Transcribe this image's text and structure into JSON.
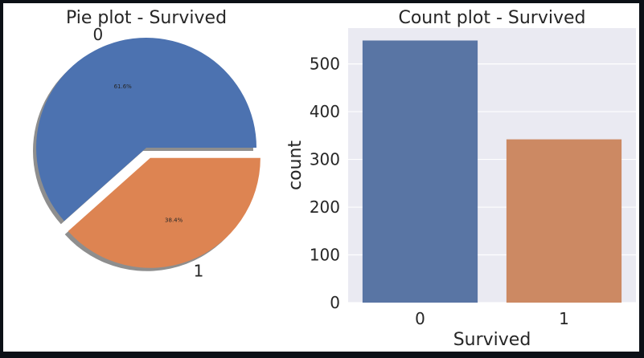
{
  "chart_data": [
    {
      "type": "pie",
      "title": "Pie plot - Survived",
      "labels": [
        "0",
        "1"
      ],
      "values": [
        61.6,
        38.4
      ],
      "autopct": [
        "61.6%",
        "38.4%"
      ],
      "explode": [
        0,
        0.1
      ],
      "shadow": true,
      "colors": [
        "#4c72b0",
        "#dd8452"
      ]
    },
    {
      "type": "bar",
      "title": "Count plot - Survived",
      "categories": [
        "0",
        "1"
      ],
      "values": [
        549,
        342
      ],
      "xlabel": "Survived",
      "ylabel": "count",
      "ylim": [
        0,
        575
      ],
      "yticks": [
        0,
        100,
        200,
        300,
        400,
        500
      ],
      "grid": true,
      "background": "#eaeaf2",
      "colors": [
        "#5975a4",
        "#cc8963"
      ]
    }
  ]
}
